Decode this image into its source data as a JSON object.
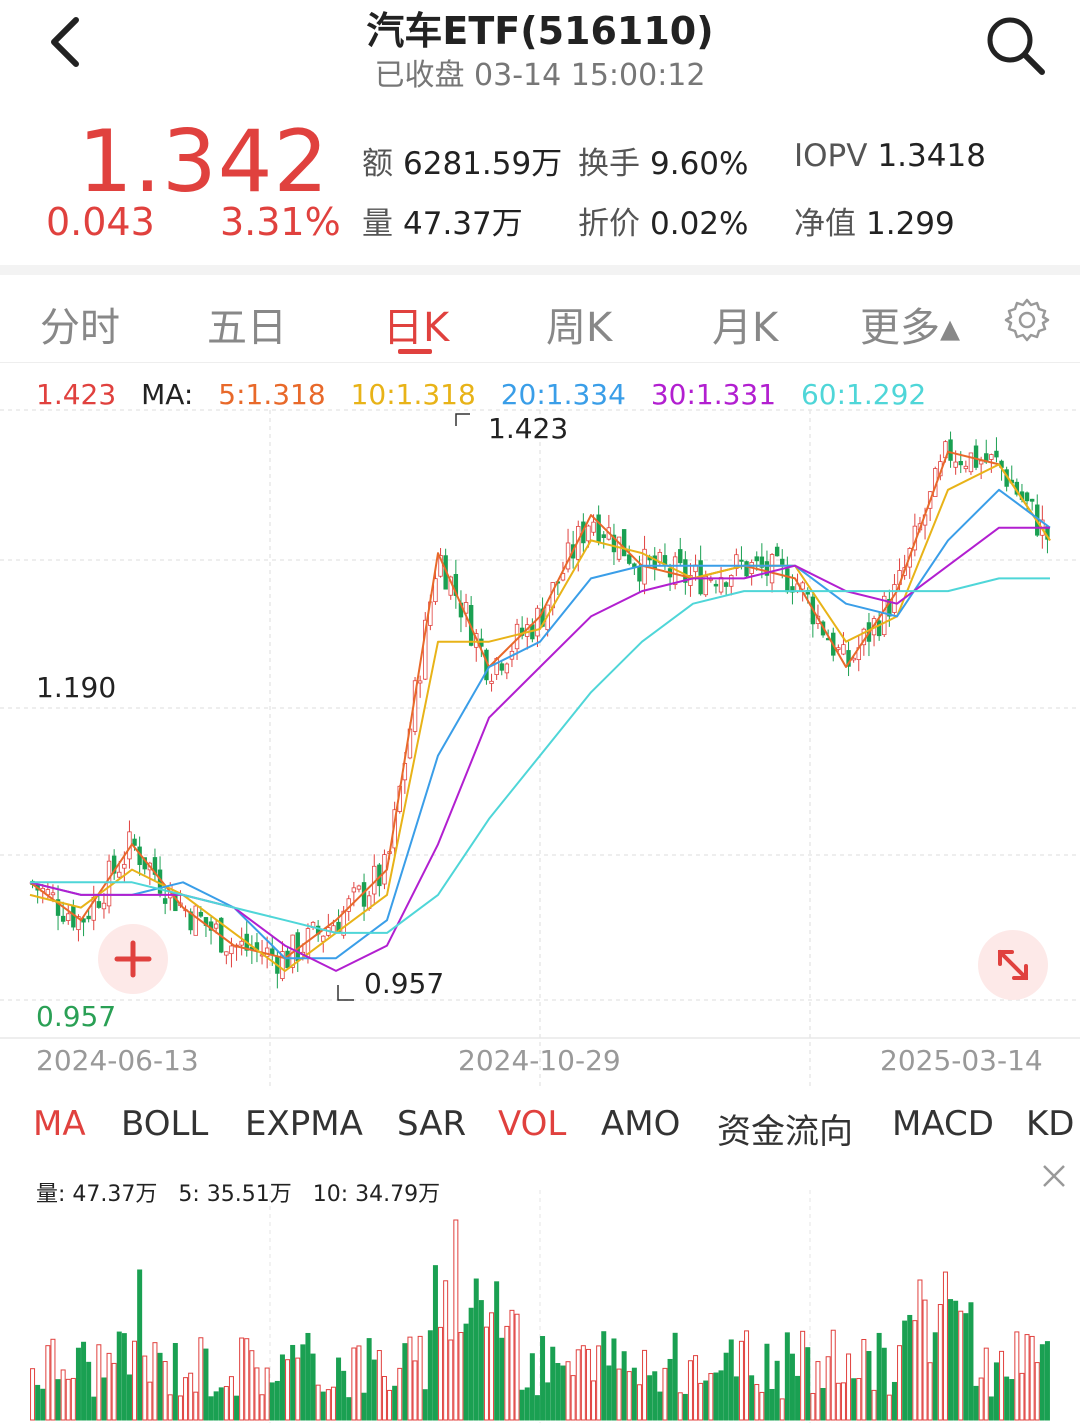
{
  "header": {
    "title": "汽车ETF(516110)",
    "status": "已收盘 03-14 15:00:12",
    "back_icon": "chevron-left-icon",
    "search_icon": "search-icon"
  },
  "quote": {
    "price": "1.342",
    "change": "0.043",
    "change_pct": "3.31%",
    "stats": [
      {
        "label": "额",
        "value": "6281.59万"
      },
      {
        "label": "换手",
        "value": "9.60%"
      },
      {
        "label": "IOPV",
        "value": "1.3418"
      },
      {
        "label": "量",
        "value": "47.37万"
      },
      {
        "label": "折价",
        "value": "0.02%"
      },
      {
        "label": "净值",
        "value": "1.299"
      }
    ],
    "up_color": "#e0413e"
  },
  "period_tabs": [
    {
      "label": "分时"
    },
    {
      "label": "五日"
    },
    {
      "label": "日K",
      "active": true
    },
    {
      "label": "周K"
    },
    {
      "label": "月K"
    },
    {
      "label": "更多▴"
    }
  ],
  "ma_legend": {
    "price": "1.423",
    "prefix": "MA:",
    "items": [
      {
        "label": "5:1.318",
        "color": "#e8692a"
      },
      {
        "label": "10:1.318",
        "color": "#e8b318"
      },
      {
        "label": "20:1.334",
        "color": "#3a9ee8"
      },
      {
        "label": "30:1.331",
        "color": "#b21fd0"
      },
      {
        "label": "60:1.292",
        "color": "#4fd6d8"
      }
    ]
  },
  "chart_data": {
    "type": "line",
    "y_axis_labels": [
      "1.190",
      "0.957"
    ],
    "high_label": "1.423",
    "low_label": "0.957",
    "x_labels": [
      "2024-06-13",
      "2024-10-29",
      "2025-03-14"
    ],
    "series": [
      {
        "name": "MA5",
        "color": "#e8692a",
        "x": [
          0,
          10,
          20,
          30,
          40,
          50,
          60,
          70,
          80,
          90,
          100,
          110,
          120,
          130,
          140,
          150,
          160,
          170,
          180,
          190,
          200
        ],
        "values": [
          1.05,
          1.02,
          1.08,
          1.03,
          1.0,
          0.99,
          1.02,
          1.06,
          1.31,
          1.22,
          1.26,
          1.34,
          1.3,
          1.29,
          1.3,
          1.29,
          1.22,
          1.28,
          1.39,
          1.38,
          1.32
        ]
      },
      {
        "name": "MA10",
        "color": "#e8b318",
        "x": [
          0,
          10,
          20,
          30,
          40,
          50,
          60,
          70,
          80,
          90,
          100,
          110,
          120,
          130,
          140,
          150,
          160,
          170,
          180,
          190,
          200
        ],
        "values": [
          1.04,
          1.03,
          1.06,
          1.04,
          1.01,
          0.98,
          1.01,
          1.04,
          1.24,
          1.24,
          1.25,
          1.32,
          1.31,
          1.29,
          1.3,
          1.3,
          1.24,
          1.26,
          1.36,
          1.38,
          1.32
        ]
      },
      {
        "name": "MA20",
        "color": "#3a9ee8",
        "x": [
          0,
          10,
          20,
          30,
          40,
          50,
          60,
          70,
          80,
          90,
          100,
          110,
          120,
          130,
          140,
          150,
          160,
          170,
          180,
          190,
          200
        ],
        "values": [
          1.05,
          1.04,
          1.04,
          1.05,
          1.03,
          0.99,
          0.99,
          1.02,
          1.15,
          1.22,
          1.24,
          1.29,
          1.3,
          1.3,
          1.3,
          1.3,
          1.27,
          1.26,
          1.32,
          1.36,
          1.33
        ]
      },
      {
        "name": "MA30",
        "color": "#b21fd0",
        "x": [
          0,
          10,
          20,
          30,
          40,
          50,
          60,
          70,
          80,
          90,
          100,
          110,
          120,
          130,
          140,
          150,
          160,
          170,
          180,
          190,
          200
        ],
        "values": [
          1.05,
          1.04,
          1.04,
          1.04,
          1.03,
          1.0,
          0.98,
          1.0,
          1.08,
          1.18,
          1.22,
          1.26,
          1.28,
          1.29,
          1.29,
          1.3,
          1.28,
          1.27,
          1.3,
          1.33,
          1.33
        ]
      },
      {
        "name": "MA60",
        "color": "#4fd6d8",
        "x": [
          0,
          10,
          20,
          30,
          40,
          50,
          60,
          70,
          80,
          90,
          100,
          110,
          120,
          130,
          140,
          150,
          160,
          170,
          180,
          190,
          200
        ],
        "values": [
          1.05,
          1.05,
          1.05,
          1.04,
          1.03,
          1.02,
          1.01,
          1.01,
          1.04,
          1.1,
          1.15,
          1.2,
          1.24,
          1.27,
          1.28,
          1.28,
          1.28,
          1.28,
          1.28,
          1.29,
          1.29
        ]
      }
    ]
  },
  "indicator_tabs": [
    {
      "label": "MA",
      "active": true
    },
    {
      "label": "BOLL"
    },
    {
      "label": "EXPMA"
    },
    {
      "label": "SAR"
    },
    {
      "label": "VOL",
      "active": true
    },
    {
      "label": "AMO"
    },
    {
      "label": "资金流向"
    },
    {
      "label": "MACD"
    },
    {
      "label": "KD"
    }
  ],
  "volume_legend": {
    "items": [
      "量: 47.37万",
      "5: 35.51万",
      "10: 34.79万"
    ]
  }
}
